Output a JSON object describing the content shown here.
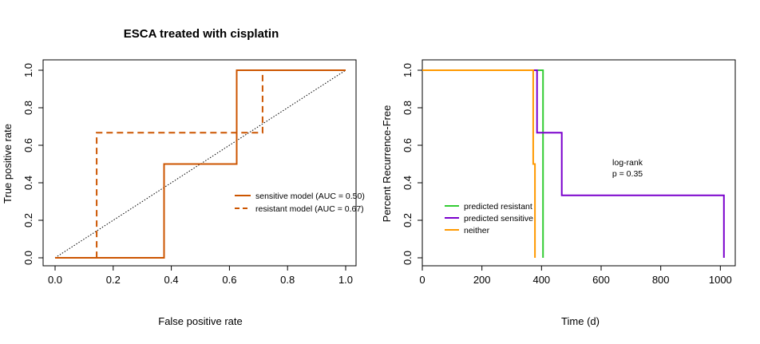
{
  "chart_data": [
    {
      "type": "line",
      "title": "ESCA treated with cisplatin",
      "xlabel": "False positive rate",
      "ylabel": "True positive rate",
      "xlim": [
        0,
        1
      ],
      "ylim": [
        0,
        1
      ],
      "xticks": [
        "0.0",
        "0.2",
        "0.4",
        "0.6",
        "0.8",
        "1.0"
      ],
      "yticks": [
        "0.0",
        "0.2",
        "0.4",
        "0.6",
        "0.8",
        "1.0"
      ],
      "legend_position": "right",
      "diagonal_reference": true,
      "series": [
        {
          "name": "sensitive model (AUC = 0.50)",
          "color": "#cc5500",
          "style": "solid",
          "x": [
            0,
            0.375,
            0.375,
            0.625,
            0.625,
            1.0
          ],
          "y": [
            0,
            0,
            0.5,
            0.5,
            1.0,
            1.0
          ]
        },
        {
          "name": "resistant model (AUC = 0.67)",
          "color": "#cc5500",
          "style": "dashed",
          "x": [
            0,
            0.143,
            0.143,
            0.714,
            0.714,
            1.0
          ],
          "y": [
            0,
            0,
            0.667,
            0.667,
            1.0,
            1.0
          ]
        }
      ]
    },
    {
      "type": "line",
      "xlabel": "Time (d)",
      "ylabel": "Percent Recurrence-Free",
      "xlim": [
        0,
        1050
      ],
      "ylim": [
        0,
        1
      ],
      "xticks": [
        "0",
        "200",
        "400",
        "600",
        "800",
        "1000"
      ],
      "yticks": [
        "0.0",
        "0.2",
        "0.4",
        "0.6",
        "0.8",
        "1.0"
      ],
      "legend_position": "bottom-left",
      "annotation": [
        "log-rank",
        "p = 0.35"
      ],
      "series": [
        {
          "name": "predicted resistant",
          "color": "#33cc33",
          "x": [
            0,
            405,
            405
          ],
          "y": [
            1.0,
            1.0,
            0.0
          ]
        },
        {
          "name": "predicted sensitive",
          "color": "#7a00cc",
          "x": [
            0,
            385,
            385,
            468,
            468,
            1012,
            1012
          ],
          "y": [
            1.0,
            1.0,
            0.667,
            0.667,
            0.333,
            0.333,
            0.0
          ]
        },
        {
          "name": "neither",
          "color": "#ff9900",
          "x": [
            0,
            372,
            372,
            378,
            378
          ],
          "y": [
            1.0,
            1.0,
            0.5,
            0.5,
            0.0
          ]
        }
      ]
    }
  ]
}
